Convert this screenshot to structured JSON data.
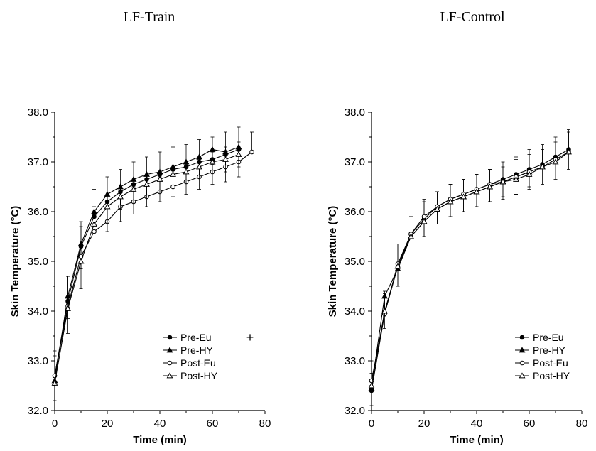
{
  "chart_data": [
    {
      "type": "line",
      "title": "LF-Train",
      "xlabel": "Time (min)",
      "ylabel": "Skin Temperature (°C)",
      "xlim": [
        0,
        80
      ],
      "ylim": [
        32.0,
        38.0
      ],
      "xticks": [
        "0",
        "20",
        "40",
        "60",
        "80"
      ],
      "yticks": [
        "32.0",
        "33.0",
        "34.0",
        "35.0",
        "36.0",
        "37.0",
        "38.0"
      ],
      "legend_position": "lower-right",
      "extra_marker": "+",
      "series": [
        {
          "name": "Pre-Eu",
          "marker": "filled-circle",
          "x": [
            0,
            5,
            10,
            15,
            20,
            25,
            30,
            35,
            40,
            45,
            50,
            55,
            60,
            65,
            70
          ],
          "y": [
            32.7,
            34.2,
            35.3,
            35.9,
            36.2,
            36.4,
            36.55,
            36.65,
            36.75,
            36.85,
            36.9,
            37.0,
            37.05,
            37.15,
            37.25
          ],
          "err": [
            0.4,
            0.5,
            0.5,
            0.55,
            0.5,
            0.45,
            0.45,
            0.45,
            0.45,
            0.45,
            0.45,
            0.45,
            0.45,
            0.45,
            0.45
          ]
        },
        {
          "name": "Pre-HY",
          "marker": "filled-triangle",
          "x": [
            0,
            5,
            10,
            15,
            20,
            25,
            30,
            35,
            40,
            45,
            50,
            55,
            60,
            65,
            70
          ],
          "y": [
            32.6,
            34.3,
            35.35,
            36.0,
            36.35,
            36.5,
            36.65,
            36.75,
            36.8,
            36.9,
            37.0,
            37.1,
            37.25,
            37.2,
            37.3
          ],
          "err": [
            0.4,
            0.45,
            0.5,
            0.55,
            0.5,
            0.45,
            0.45,
            0.45,
            0.4,
            0.4,
            0.4,
            0.4,
            0.3,
            0.4,
            0.4
          ]
        },
        {
          "name": "Post-Eu",
          "marker": "open-circle",
          "x": [
            0,
            5,
            10,
            15,
            20,
            25,
            30,
            35,
            40,
            45,
            50,
            55,
            60,
            65,
            70,
            75
          ],
          "y": [
            32.7,
            34.1,
            35.1,
            35.6,
            35.8,
            36.1,
            36.2,
            36.3,
            36.4,
            36.5,
            36.6,
            36.7,
            36.8,
            36.9,
            37.0,
            37.2
          ],
          "err": [
            0.5,
            0.6,
            0.6,
            0.5,
            0.4,
            0.4,
            0.3,
            0.35,
            0.3,
            0.35,
            0.35,
            0.35,
            0.4,
            0.4,
            0.4,
            0.4
          ]
        },
        {
          "name": "Post-HY",
          "marker": "open-triangle",
          "x": [
            0,
            5,
            10,
            15,
            20,
            25,
            30,
            35,
            40,
            45,
            50,
            55,
            60,
            65,
            70
          ],
          "y": [
            32.55,
            34.05,
            35.0,
            35.75,
            36.1,
            36.3,
            36.45,
            36.55,
            36.65,
            36.75,
            36.8,
            36.9,
            37.0,
            37.05,
            37.15
          ],
          "err": [
            0.4,
            0.5,
            0.55,
            0.5,
            0.5,
            0.5,
            0.5,
            0.45,
            0.45,
            0.45,
            0.45,
            0.45,
            0.45,
            0.45,
            0.45
          ]
        }
      ]
    },
    {
      "type": "line",
      "title": "LF-Control",
      "xlabel": "Time (min)",
      "ylabel": "Skin Temperature (°C)",
      "xlim": [
        0,
        80
      ],
      "ylim": [
        32.0,
        38.0
      ],
      "xticks": [
        "0",
        "20",
        "40",
        "60",
        "80"
      ],
      "yticks": [
        "32.0",
        "33.0",
        "34.0",
        "35.0",
        "36.0",
        "37.0",
        "38.0"
      ],
      "legend_position": "lower-right",
      "series": [
        {
          "name": "Pre-Eu",
          "marker": "filled-circle",
          "x": [
            0,
            5,
            10,
            15,
            20,
            25,
            30,
            35,
            40,
            45,
            50,
            55,
            60,
            65,
            70,
            75
          ],
          "y": [
            32.4,
            33.95,
            34.9,
            35.55,
            35.85,
            36.1,
            36.25,
            36.35,
            36.45,
            36.55,
            36.65,
            36.75,
            36.85,
            36.95,
            37.1,
            37.25
          ],
          "err": [
            0.35,
            0.45,
            0.45,
            0.35,
            0.35,
            0.3,
            0.3,
            0.3,
            0.3,
            0.3,
            0.35,
            0.35,
            0.4,
            0.4,
            0.4,
            0.4
          ]
        },
        {
          "name": "Pre-HY",
          "marker": "filled-triangle",
          "x": [
            0,
            5,
            10,
            15,
            20,
            25,
            30,
            35,
            40,
            45,
            50,
            55,
            60
          ],
          "y": [
            32.45,
            34.3,
            34.85,
            35.5,
            35.8,
            36.05,
            36.2,
            36.3,
            36.4,
            36.5,
            36.6,
            36.7,
            36.8
          ],
          "err": [
            0.35,
            0.4,
            0.35,
            0.35,
            0.3,
            0.3,
            0.3,
            0.3,
            0.3,
            0.3,
            0.35,
            0.35,
            0.3
          ]
        },
        {
          "name": "Post-Eu",
          "marker": "open-circle",
          "x": [
            0,
            5,
            10,
            15,
            20,
            25,
            30,
            35,
            40,
            45,
            50,
            55,
            60,
            65,
            70,
            75
          ],
          "y": [
            32.6,
            33.95,
            34.95,
            35.55,
            35.9,
            36.1,
            36.25,
            36.35,
            36.45,
            36.55,
            36.6,
            36.7,
            36.8,
            36.9,
            37.05,
            37.2
          ],
          "err": [
            0.4,
            0.4,
            0.4,
            0.35,
            0.35,
            0.3,
            0.3,
            0.3,
            0.3,
            0.3,
            0.3,
            0.35,
            0.35,
            0.35,
            0.35,
            0.4
          ]
        },
        {
          "name": "Post-HY",
          "marker": "open-triangle",
          "x": [
            0,
            5,
            10,
            15,
            20,
            25,
            30,
            35,
            40,
            45,
            50,
            55,
            60,
            65,
            70,
            75
          ],
          "y": [
            32.5,
            34.0,
            34.9,
            35.5,
            35.8,
            36.05,
            36.2,
            36.3,
            36.4,
            36.5,
            36.6,
            36.65,
            36.75,
            36.9,
            37.0,
            37.2
          ],
          "err": [
            0.35,
            0.35,
            0.4,
            0.35,
            0.3,
            0.3,
            0.3,
            0.3,
            0.3,
            0.3,
            0.3,
            0.3,
            0.3,
            0.35,
            0.35,
            0.35
          ]
        }
      ]
    }
  ]
}
